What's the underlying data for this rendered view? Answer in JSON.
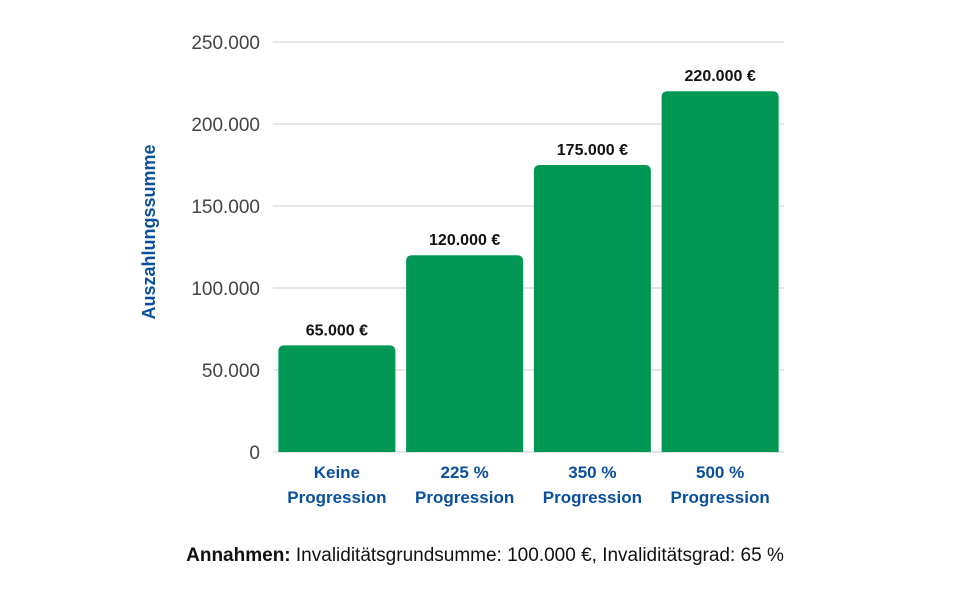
{
  "chart_data": {
    "type": "bar",
    "categories": [
      [
        "Keine",
        "Progression"
      ],
      [
        "225 %",
        "Progression"
      ],
      [
        "350 %",
        "Progression"
      ],
      [
        "500 %",
        "Progression"
      ]
    ],
    "values": [
      65000,
      120000,
      175000,
      220000
    ],
    "value_labels": [
      "65.000 €",
      "120.000 €",
      "175.000 €",
      "220.000 €"
    ],
    "ylabel": "Auszahlungssumme",
    "ylim": [
      0,
      250000
    ],
    "yticks": [
      0,
      50000,
      100000,
      150000,
      200000,
      250000
    ],
    "ytick_labels": [
      "0",
      "50.000",
      "100.000",
      "150.000",
      "200.000",
      "250.000"
    ],
    "grid": true,
    "colors": {
      "bar": "#009854",
      "category_text": "#0A4F9C",
      "ylabel_text": "#0A4F9C",
      "grid": "#CCCCCC"
    }
  },
  "footnote": {
    "label": "Annahmen:",
    "text": "Invaliditätsgrundsumme: 100.000 €, Invaliditätsgrad: 65 %"
  }
}
